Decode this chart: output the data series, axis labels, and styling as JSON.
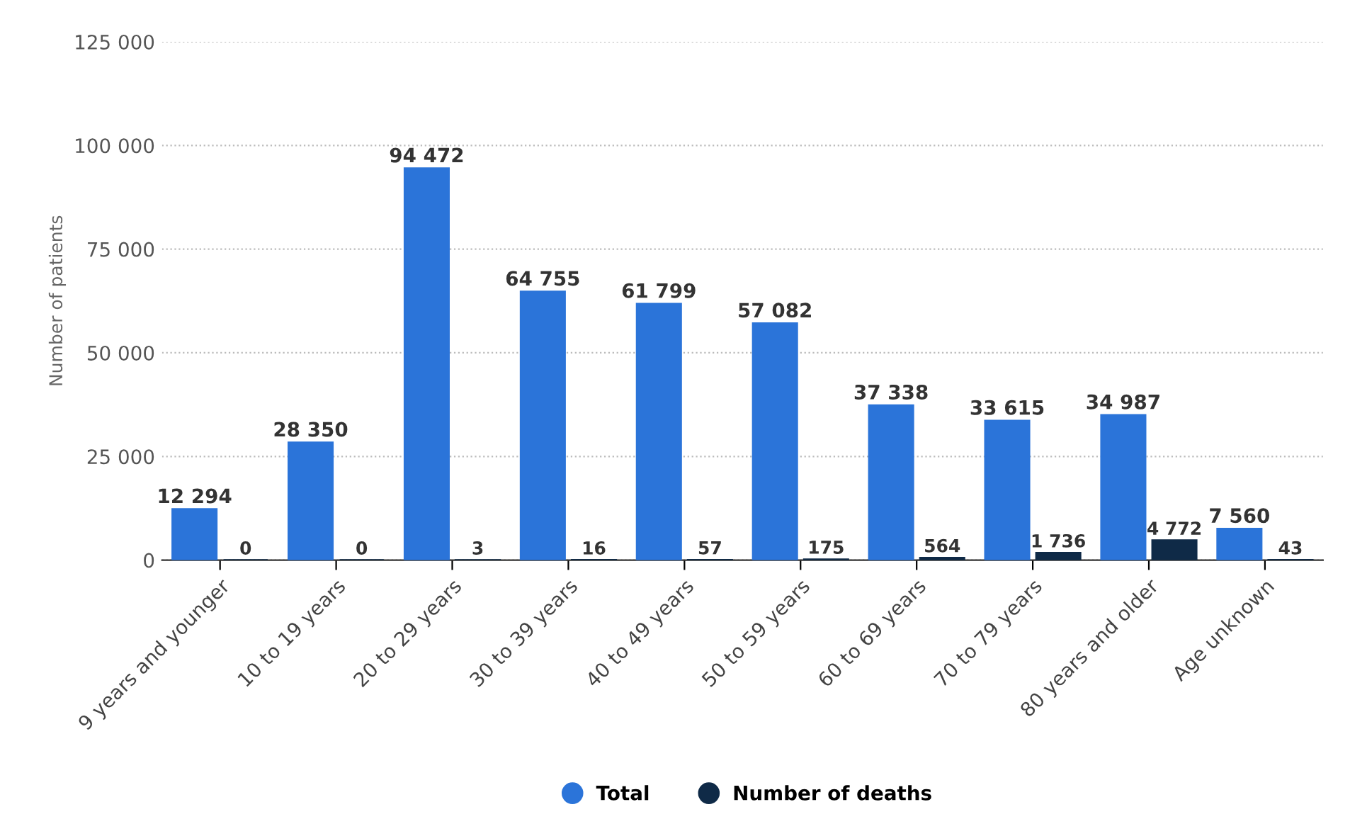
{
  "chart_data": {
    "type": "bar",
    "ylabel": "Number of patients",
    "categories": [
      "9 years and younger",
      "10 to 19 years",
      "20 to 29 years",
      "30 to 39 years",
      "40 to 49 years",
      "50 to 59 years",
      "60 to 69 years",
      "70 to 79 years",
      "80 years and older",
      "Age unknown"
    ],
    "series": [
      {
        "name": "Total",
        "color": "#2b74d9",
        "values": [
          12294,
          28350,
          94472,
          64755,
          61799,
          57082,
          37338,
          33615,
          34987,
          7560
        ],
        "value_labels": [
          "12 294",
          "28 350",
          "94 472",
          "64 755",
          "61 799",
          "57 082",
          "37 338",
          "33 615",
          "34 987",
          "7 560"
        ]
      },
      {
        "name": "Number of deaths",
        "color": "#0f2a47",
        "values": [
          0,
          0,
          3,
          16,
          57,
          175,
          564,
          1736,
          4772,
          43
        ],
        "value_labels": [
          "0",
          "0",
          "3",
          "16",
          "57",
          "175",
          "564",
          "1 736",
          "4 772",
          "43"
        ]
      }
    ],
    "ylim": [
      0,
      125000
    ],
    "yticks": [
      0,
      {
        "value": 25000,
        "label": "25 000"
      },
      {
        "value": 50000,
        "label": "50 000"
      },
      {
        "value": 75000,
        "label": "75 000"
      },
      {
        "value": 100000,
        "label": "100 000"
      },
      {
        "value": 125000,
        "label": "125 000"
      }
    ],
    "grid": "y",
    "legend": "bottom"
  }
}
